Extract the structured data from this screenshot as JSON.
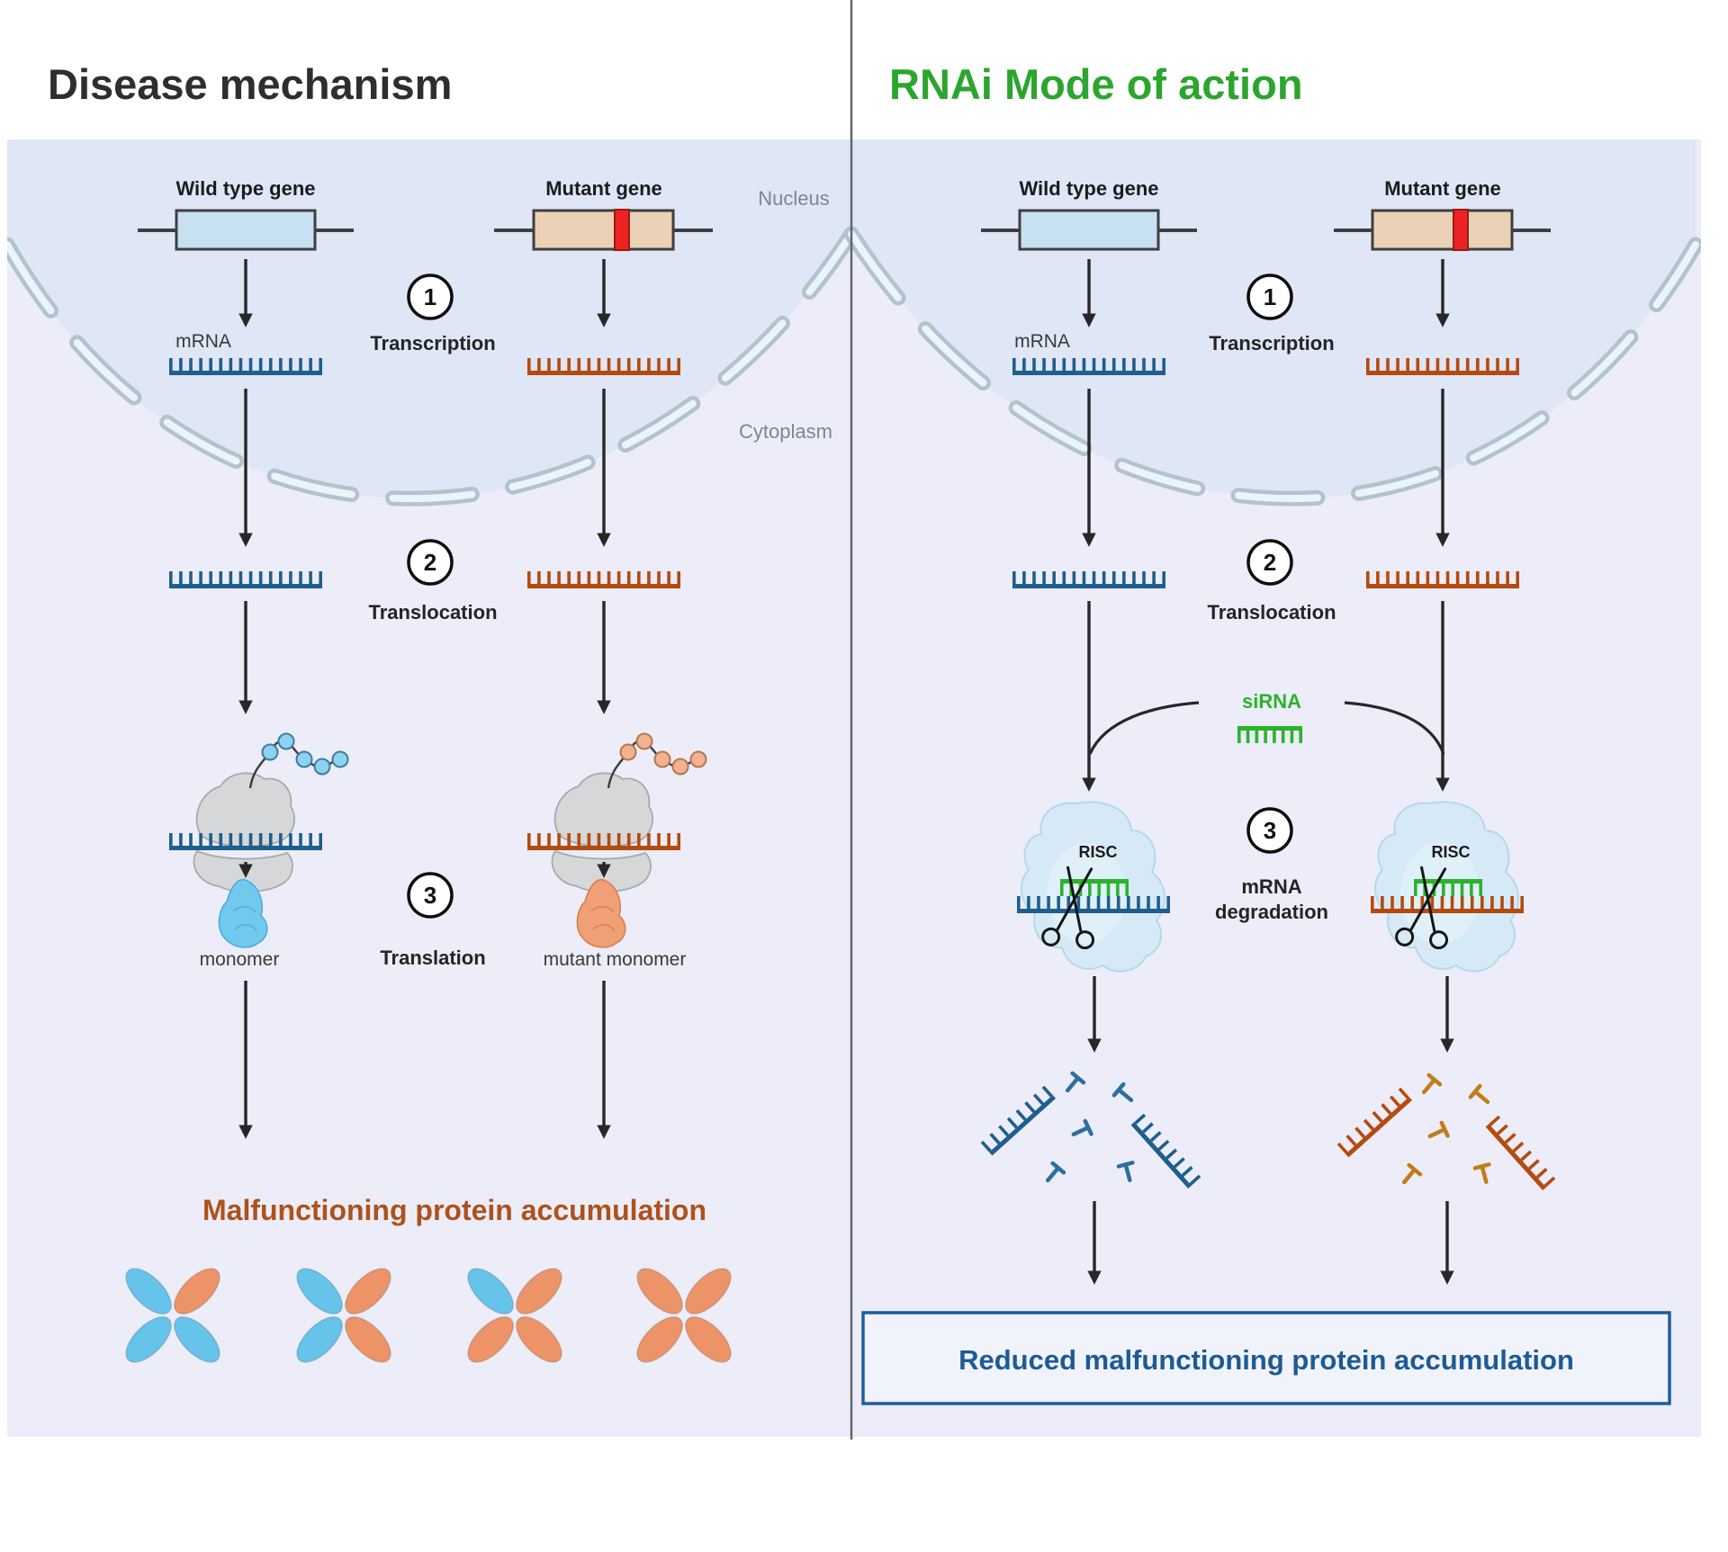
{
  "colors": {
    "title_dark": "#2e2e2e",
    "title_green": "#2ca52f",
    "gray_label": "#7f8594",
    "panel": "#ecedf8",
    "nucleus": "#dfe6f6",
    "membrane_out": "#b2c2ce",
    "membrane_in": "#e9f4fb",
    "divider": "#63666e",
    "arrow": "#272727",
    "gene_blue": "#c7e0f2",
    "gene_tan": "#ebd2b6",
    "gene_stroke": "#3f3f3f",
    "red": "#ed2224",
    "red_stroke": "#931f14",
    "mrna_blue": "#1f5e8e",
    "mrna_orange": "#b54a10",
    "sirna_green": "#2cb32c",
    "ribo_fill": "#d6d7d9",
    "ribo_stroke": "#a9a9ac",
    "bead_blue": "#8ed2f2",
    "bead_blue_s": "#3c7d9e",
    "bead_orange": "#f2b291",
    "bead_orange_s": "#b8764c",
    "mono_blue": "#72c9ee",
    "mono_blue_d": "#4aa9d8",
    "mono_orange": "#efa077",
    "mono_orange_d": "#d97b47",
    "risc_fill": "#d5eaf6",
    "risc_stroke": "#b5d8ec",
    "risc_inner": "#e2f1fa",
    "t_blue": "#2e6e9e",
    "t_orange": "#c27c1c",
    "brown": "#ad521d",
    "box_border": "#1e5d9e",
    "box_bg": "#f0f3fb",
    "box_text": "#1d5a96",
    "lobe_blue": "#66c3ea",
    "lobe_orange": "#ec9468"
  },
  "header": {
    "left_title": "Disease mechanism",
    "right_title": "RNAi Mode of action"
  },
  "labels": {
    "nucleus": "Nucleus",
    "cytoplasm": "Cytoplasm"
  },
  "disease": {
    "wild_gene": "Wild type gene",
    "mutant_gene": "Mutant gene",
    "mrna": "mRNA",
    "step1_num": "1",
    "step1": "Transcription",
    "step2_num": "2",
    "step2": "Translocation",
    "step3_num": "3",
    "step3": "Translation",
    "monomer": "monomer",
    "mutant_monomer": "mutant monomer",
    "result": "Malfunctioning protein accumulation",
    "aggregates": [
      {
        "lobes": [
          "#66c3ea",
          "#ec9468",
          "#66c3ea",
          "#66c3ea"
        ]
      },
      {
        "lobes": [
          "#66c3ea",
          "#ec9468",
          "#66c3ea",
          "#ec9468"
        ]
      },
      {
        "lobes": [
          "#66c3ea",
          "#ec9468",
          "#ec9468",
          "#ec9468"
        ]
      },
      {
        "lobes": [
          "#ec9468",
          "#ec9468",
          "#ec9468",
          "#ec9468"
        ]
      }
    ]
  },
  "rnai": {
    "wild_gene": "Wild type gene",
    "mutant_gene": "Mutant gene",
    "mrna": "mRNA",
    "step1_num": "1",
    "step1": "Transcription",
    "step2_num": "2",
    "step2": "Translocation",
    "step3_num": "3",
    "step3_line1": "mRNA",
    "step3_line2": "degradation",
    "sirna": "siRNA",
    "risc": "RISC",
    "result": "Reduced malfunctioning protein accumulation"
  }
}
